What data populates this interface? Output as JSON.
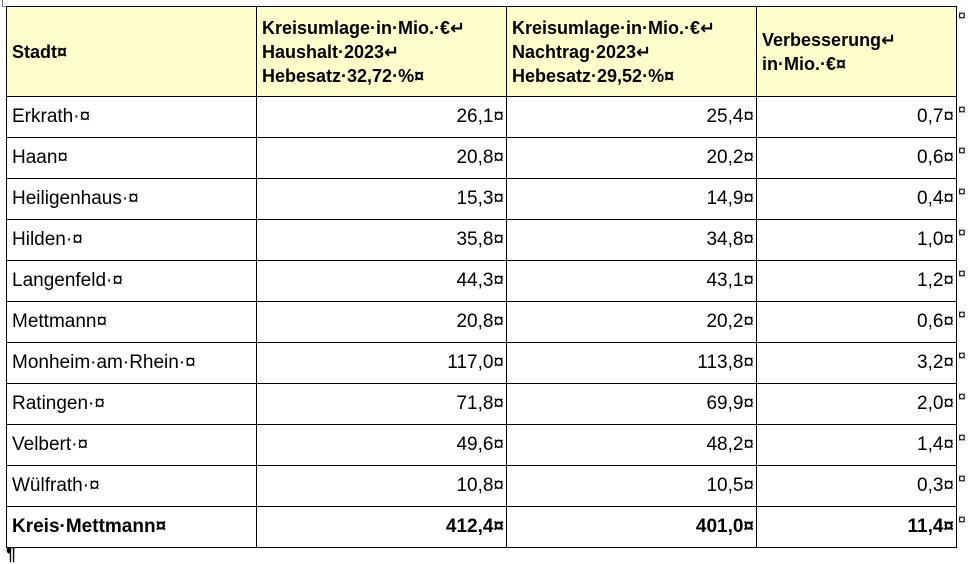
{
  "table": {
    "headers": [
      [
        "Stadt¤"
      ],
      [
        "Kreisumlage·in·Mio.·€↵",
        "Haushalt·2023↵",
        "Hebesatz·32,72·%¤"
      ],
      [
        "Kreisumlage·in·Mio.·€↵",
        "Nachtrag·2023↵",
        "Hebesatz·29,52·%¤"
      ],
      [
        "Verbesserung↵",
        "in·Mio.·€¤"
      ]
    ],
    "rows": [
      [
        "Erkrath·¤",
        "26,1¤",
        "25,4¤",
        "0,7¤"
      ],
      [
        "Haan¤",
        "20,8¤",
        "20,2¤",
        "0,6¤"
      ],
      [
        "Heiligenhaus·¤",
        "15,3¤",
        "14,9¤",
        "0,4¤"
      ],
      [
        "Hilden·¤",
        "35,8¤",
        "34,8¤",
        "1,0¤"
      ],
      [
        "Langenfeld·¤",
        "44,3¤",
        "43,1¤",
        "1,2¤"
      ],
      [
        "Mettmann¤",
        "20,8¤",
        "20,2¤",
        "0,6¤"
      ],
      [
        "Monheim·am·Rhein·¤",
        "117,0¤",
        "113,8¤",
        "3,2¤"
      ],
      [
        "Ratingen·¤",
        "71,8¤",
        "69,9¤",
        "2,0¤"
      ],
      [
        "Velbert·¤",
        "49,6¤",
        "48,2¤",
        "1,4¤"
      ],
      [
        "Wülfrath·¤",
        "10,8¤",
        "10,5¤",
        "0,3¤"
      ]
    ],
    "total": [
      "Kreis·Mettmann¤",
      "412,4¤",
      "401,0¤",
      "11,4¤"
    ]
  },
  "end_of_row_mark": "¤",
  "paragraph_mark": "¶"
}
